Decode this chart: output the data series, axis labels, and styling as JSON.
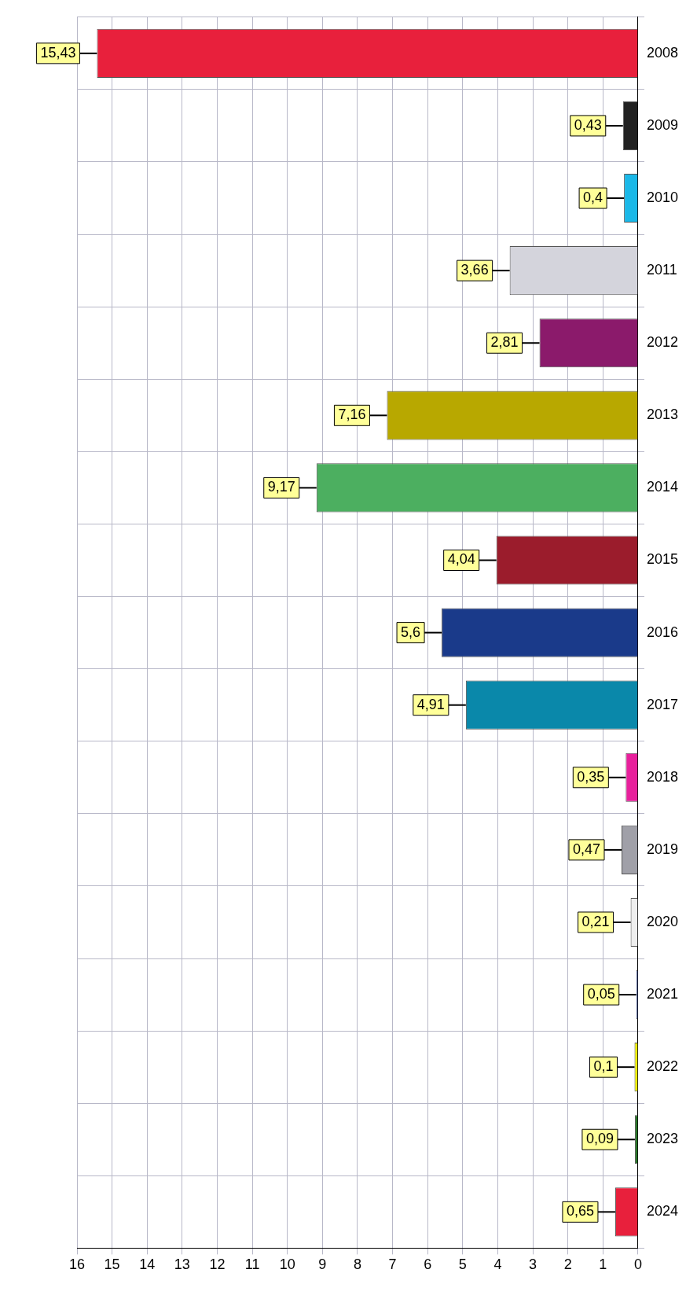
{
  "chart_data": {
    "type": "bar",
    "orientation": "horizontal",
    "categories": [
      "2008",
      "2009",
      "2010",
      "2011",
      "2012",
      "2013",
      "2014",
      "2015",
      "2016",
      "2017",
      "2018",
      "2019",
      "2020",
      "2021",
      "2022",
      "2023",
      "2024"
    ],
    "values": [
      15.43,
      0.43,
      0.4,
      3.66,
      2.81,
      7.16,
      9.17,
      4.04,
      5.6,
      4.91,
      0.35,
      0.47,
      0.21,
      0.05,
      0.1,
      0.09,
      0.65
    ],
    "colors": [
      "#e8203c",
      "#222222",
      "#1ab8e8",
      "#d4d4dc",
      "#8b1a6b",
      "#b8a800",
      "#4caf60",
      "#9b1c2c",
      "#1a3a8a",
      "#0a88aa",
      "#e8209c",
      "#a0a0a8",
      "#eeeeee",
      "#3a5ac8",
      "#f0f000",
      "#2a7a2a",
      "#e8203c"
    ],
    "value_labels": [
      "15,43",
      "0,43",
      "0,4",
      "3,66",
      "2,81",
      "7,16",
      "9,17",
      "4,04",
      "5,6",
      "4,91",
      "0,35",
      "0,47",
      "0,21",
      "0,05",
      "0,1",
      "0,09",
      "0,65"
    ],
    "xlim": [
      16,
      0
    ],
    "xticks": [
      0,
      1,
      2,
      3,
      4,
      5,
      6,
      7,
      8,
      9,
      10,
      11,
      12,
      13,
      14,
      15,
      16
    ],
    "grid": true
  }
}
